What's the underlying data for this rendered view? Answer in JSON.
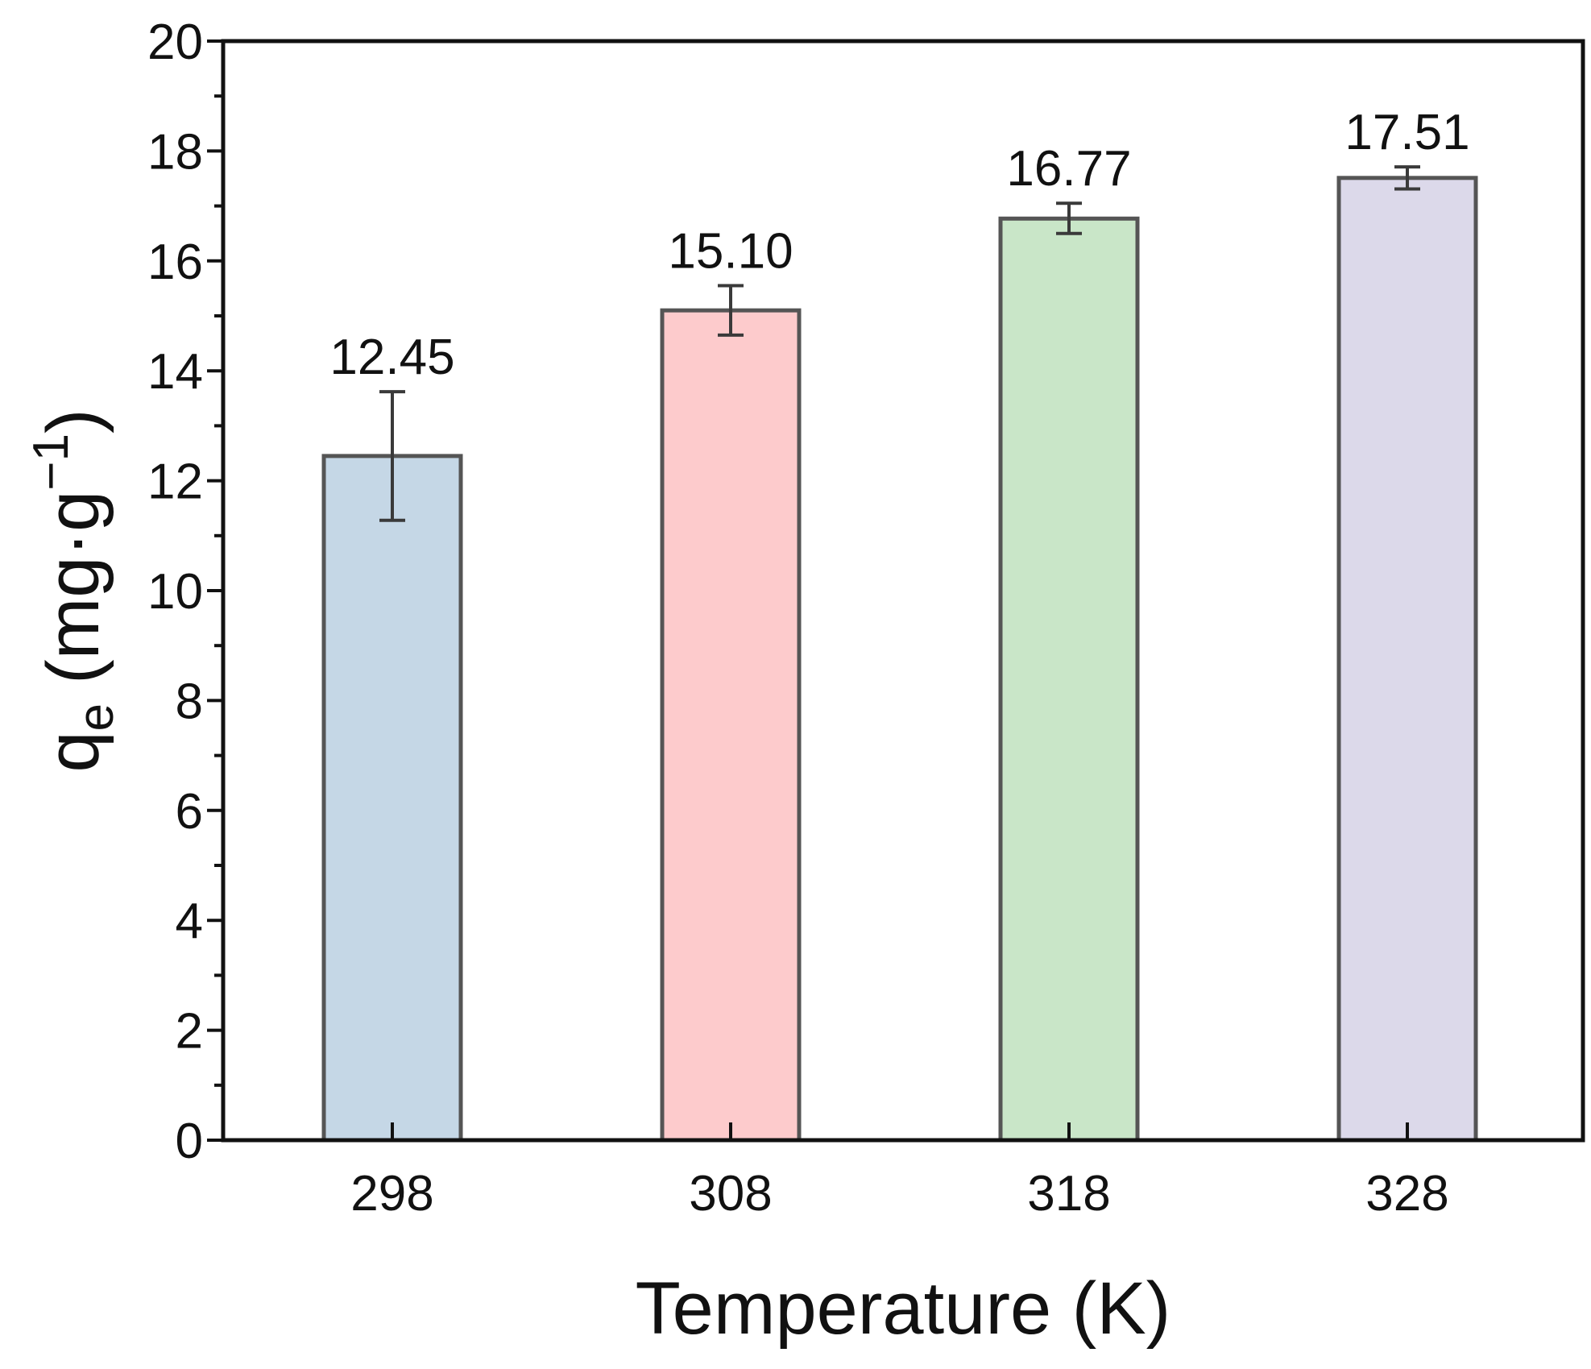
{
  "chart_data": {
    "type": "bar",
    "xlabel": "Temperature (K)",
    "ylabel": {
      "symbol": "q",
      "subscript": "e",
      "unit_open": "(mg·g",
      "unit_superscript": "−1",
      "unit_close": ")"
    },
    "categories": [
      "298",
      "308",
      "318",
      "328"
    ],
    "values": [
      12.45,
      15.1,
      16.77,
      17.51
    ],
    "value_labels": [
      "12.45",
      "15.10",
      "16.77",
      "17.51"
    ],
    "error_low": [
      11.28,
      14.65,
      16.5,
      17.31
    ],
    "error_high": [
      13.62,
      15.55,
      17.05,
      17.71
    ],
    "colors": [
      "#c5d7e6",
      "#fdcbcc",
      "#c9e6c8",
      "#dcd9ea"
    ],
    "ylim": [
      0,
      20
    ],
    "yticks": [
      "0",
      "2",
      "4",
      "6",
      "8",
      "10",
      "12",
      "14",
      "16",
      "18",
      "20"
    ],
    "grid": false,
    "legend": "none"
  }
}
